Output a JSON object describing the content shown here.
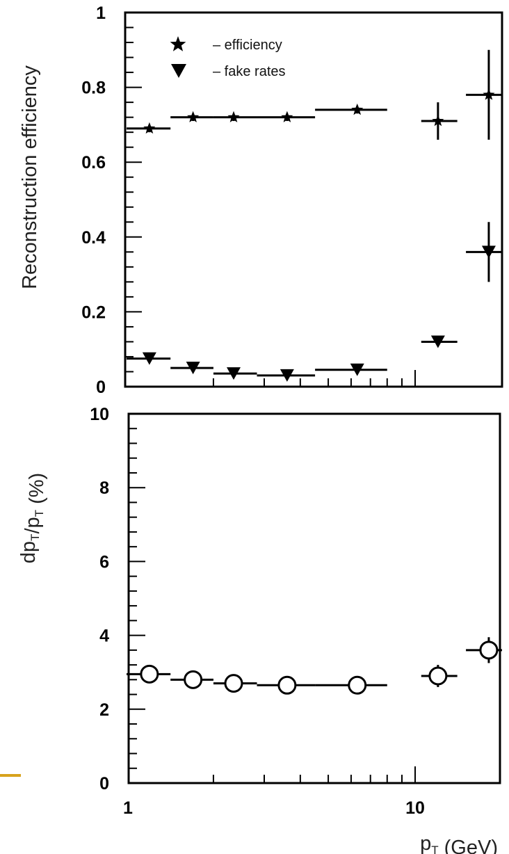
{
  "colors": {
    "ink": "#000000",
    "background": "#ffffff",
    "accent_line": "#d7a21c"
  },
  "chart_data": [
    {
      "type": "scatter",
      "xscale": "log",
      "xlim": [
        1,
        20
      ],
      "ylim": [
        0,
        1
      ],
      "yticks": [
        "0",
        "0.2",
        "0.4",
        "0.6",
        "0.8",
        "1"
      ],
      "ylabel": "Reconstruction efficiency",
      "xlabel": "",
      "legend_position": "top-left",
      "series": [
        {
          "name": "– efficiency",
          "marker": "star",
          "points": [
            {
              "x": 1.2,
              "y": 0.69,
              "x_err": [
                1.0,
                1.42
              ],
              "y_err": 0.01
            },
            {
              "x": 1.7,
              "y": 0.72,
              "x_err": [
                1.42,
                2.0
              ],
              "y_err": 0.01
            },
            {
              "x": 2.35,
              "y": 0.72,
              "x_err": [
                2.0,
                2.83
              ],
              "y_err": 0.01
            },
            {
              "x": 3.6,
              "y": 0.72,
              "x_err": [
                2.83,
                4.5
              ],
              "y_err": 0.01
            },
            {
              "x": 6.3,
              "y": 0.74,
              "x_err": [
                4.5,
                8.0
              ],
              "y_err": 0.01
            },
            {
              "x": 12,
              "y": 0.71,
              "x_err": [
                10.5,
                14.0
              ],
              "y_err": 0.05
            },
            {
              "x": 18,
              "y": 0.78,
              "x_err": [
                15.0,
                20.0
              ],
              "y_err": 0.12
            }
          ]
        },
        {
          "name": "– fake rates",
          "marker": "triangle-down",
          "points": [
            {
              "x": 1.2,
              "y": 0.075,
              "x_err": [
                1.0,
                1.42
              ],
              "y_err": 0.01
            },
            {
              "x": 1.7,
              "y": 0.05,
              "x_err": [
                1.42,
                2.0
              ],
              "y_err": 0.01
            },
            {
              "x": 2.35,
              "y": 0.035,
              "x_err": [
                2.0,
                2.83
              ],
              "y_err": 0.01
            },
            {
              "x": 3.6,
              "y": 0.03,
              "x_err": [
                2.83,
                4.5
              ],
              "y_err": 0.01
            },
            {
              "x": 6.3,
              "y": 0.045,
              "x_err": [
                4.5,
                8.0
              ],
              "y_err": 0.01
            },
            {
              "x": 12,
              "y": 0.12,
              "x_err": [
                10.5,
                14.0
              ],
              "y_err": 0.01
            },
            {
              "x": 18,
              "y": 0.36,
              "x_err": [
                15.0,
                20.0
              ],
              "y_err": 0.08
            }
          ]
        }
      ]
    },
    {
      "type": "scatter",
      "xscale": "log",
      "xlim": [
        1,
        20
      ],
      "ylim": [
        0,
        10
      ],
      "yticks": [
        "0",
        "2",
        "4",
        "6",
        "8",
        "10"
      ],
      "xticks": [
        {
          "value": 1,
          "label": "1"
        },
        {
          "value": 10,
          "label": "10"
        }
      ],
      "ylabel": "dp_T/p_T (%)",
      "xlabel": "p_T (GeV)",
      "series": [
        {
          "name": "",
          "marker": "circle-open",
          "points": [
            {
              "x": 1.2,
              "y": 2.95,
              "x_err": [
                1.0,
                1.42
              ],
              "y_err": 0.0
            },
            {
              "x": 1.7,
              "y": 2.8,
              "x_err": [
                1.42,
                2.0
              ],
              "y_err": 0.0
            },
            {
              "x": 2.35,
              "y": 2.7,
              "x_err": [
                2.0,
                2.83
              ],
              "y_err": 0.0
            },
            {
              "x": 3.6,
              "y": 2.65,
              "x_err": [
                2.83,
                4.5
              ],
              "y_err": 0.0
            },
            {
              "x": 6.3,
              "y": 2.65,
              "x_err": [
                4.5,
                8.0
              ],
              "y_err": 0.0
            },
            {
              "x": 12,
              "y": 2.9,
              "x_err": [
                10.5,
                14.0
              ],
              "y_err": 0.3
            },
            {
              "x": 18,
              "y": 3.6,
              "x_err": [
                15.0,
                20.0
              ],
              "y_err": 0.35
            }
          ]
        }
      ]
    }
  ]
}
